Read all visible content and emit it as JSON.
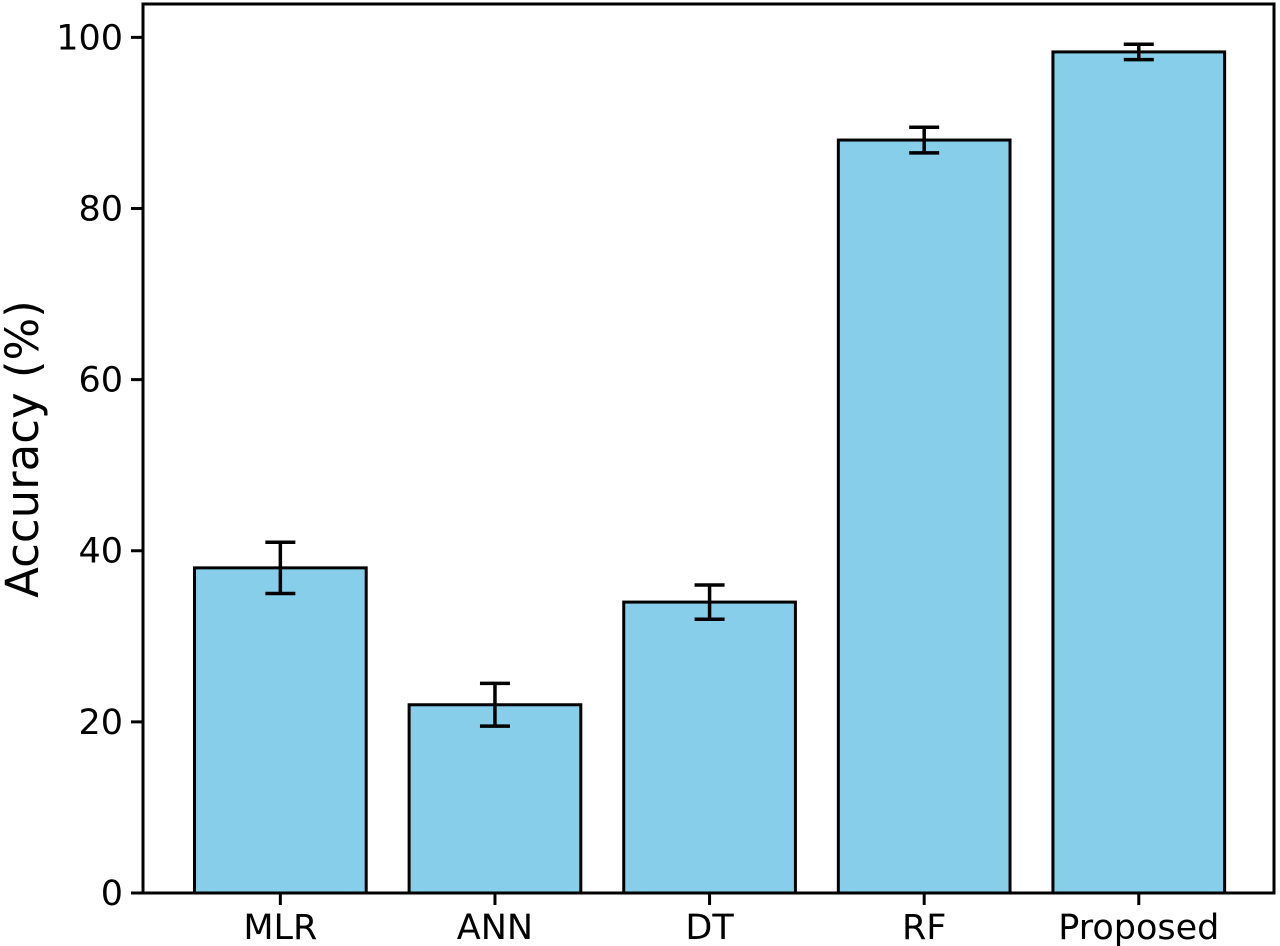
{
  "figure": {
    "background_color": "#ffffff"
  },
  "chart_data": {
    "type": "bar",
    "title": "",
    "xlabel": "",
    "ylabel": "Accuracy (%)",
    "categories": [
      "MLR",
      "ANN",
      "DT",
      "RF",
      "Proposed"
    ],
    "values": [
      38,
      22,
      34,
      88,
      98.3
    ],
    "error_bars": [
      3,
      2.5,
      2,
      1.5,
      0.9
    ],
    "yticks": [
      0,
      20,
      40,
      60,
      80,
      100
    ],
    "ylim": [
      0,
      103.9
    ],
    "bar_width_fraction": 0.8,
    "bar_fill_color": "#87CEEB",
    "bar_edge_color": "#000000",
    "error_bar_color": "#000000",
    "spine_color": "#000000",
    "grid": false,
    "legend_position": "none"
  }
}
